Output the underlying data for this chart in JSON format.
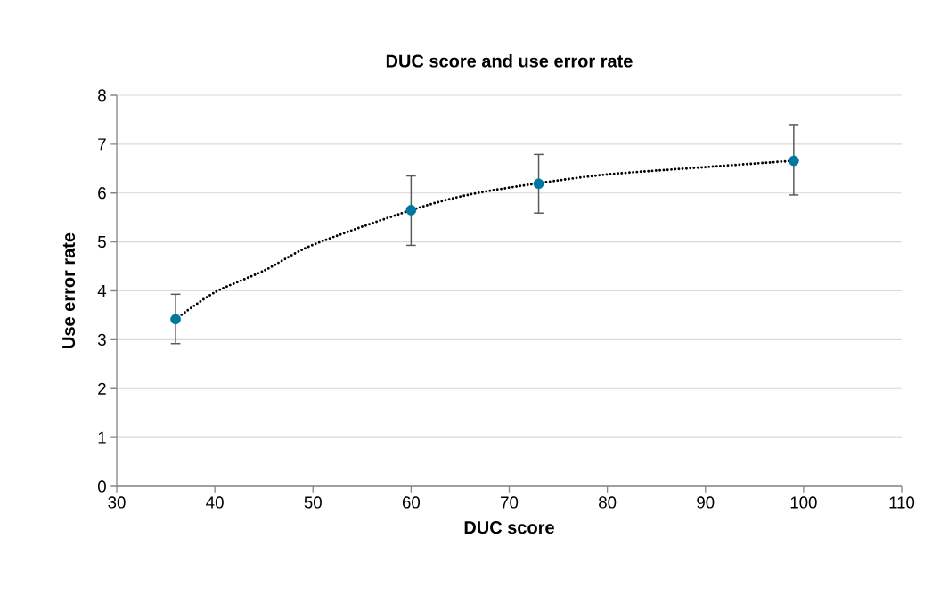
{
  "chart_data": {
    "type": "scatter",
    "title": "DUC score and use error rate",
    "xlabel": "DUC score",
    "ylabel": "Use error rate",
    "x": [
      36,
      60,
      73,
      99
    ],
    "series": [
      {
        "color": "#0077a0",
        "values": [
          3.42,
          5.65,
          6.19,
          6.66
        ],
        "errors": [
          [
            2.92,
            3.93
          ],
          [
            4.93,
            6.35
          ],
          [
            5.59,
            6.79
          ],
          [
            5.96,
            7.4
          ]
        ],
        "marker": "circle"
      },
      {
        "type": "line",
        "color": "#000000",
        "x": [
          36,
          40,
          45,
          50,
          60,
          66,
          73,
          80,
          90,
          99
        ],
        "values": [
          3.42,
          3.97,
          4.41,
          4.94,
          5.65,
          5.97,
          6.2,
          6.38,
          6.53,
          6.66
        ],
        "line_style": "dotted",
        "marker": "none"
      }
    ],
    "xlim": [
      30,
      110
    ],
    "xticks": [
      30,
      40,
      50,
      60,
      70,
      80,
      90,
      100,
      110
    ],
    "ylim": [
      0,
      8
    ],
    "yticks": [
      0,
      1,
      2,
      3,
      4,
      5,
      6,
      7,
      8
    ],
    "grid": "y"
  }
}
